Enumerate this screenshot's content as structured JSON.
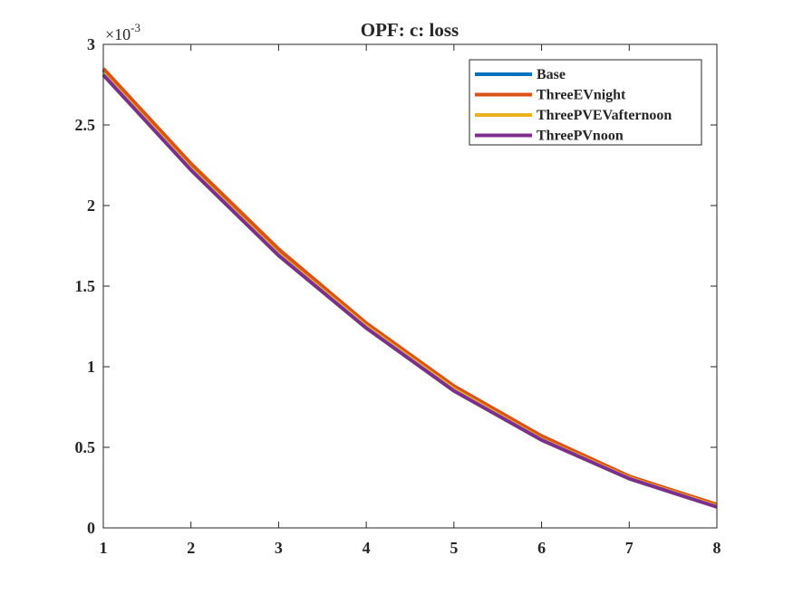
{
  "chart_data": {
    "type": "line",
    "title": "OPF: c: loss",
    "xlabel": "",
    "ylabel": "",
    "xlim": [
      1,
      8
    ],
    "ylim": [
      0,
      3
    ],
    "y_exponent_label": "×10",
    "y_exponent_power": "-3",
    "x_ticks": [
      "1",
      "2",
      "3",
      "4",
      "5",
      "6",
      "7",
      "8"
    ],
    "y_ticks": [
      "0",
      "0.5",
      "1",
      "1.5",
      "2",
      "2.5",
      "3"
    ],
    "x": [
      1,
      2,
      3,
      4,
      5,
      6,
      7,
      8
    ],
    "legend_position": "top-right",
    "grid": false,
    "series": [
      {
        "name": "Base",
        "color": "#0072BD",
        "values": [
          2.84,
          2.25,
          1.72,
          1.26,
          0.87,
          0.56,
          0.31,
          0.14
        ]
      },
      {
        "name": "ThreeEVnight",
        "color": "#D95319",
        "values": [
          2.85,
          2.26,
          1.73,
          1.27,
          0.88,
          0.57,
          0.32,
          0.145
        ]
      },
      {
        "name": "ThreePVEVafternoon",
        "color": "#EDB120",
        "values": [
          2.82,
          2.23,
          1.7,
          1.25,
          0.86,
          0.55,
          0.31,
          0.135
        ]
      },
      {
        "name": "ThreePVnoon",
        "color": "#7E2F8E",
        "values": [
          2.81,
          2.22,
          1.69,
          1.24,
          0.85,
          0.545,
          0.305,
          0.13
        ]
      }
    ]
  }
}
